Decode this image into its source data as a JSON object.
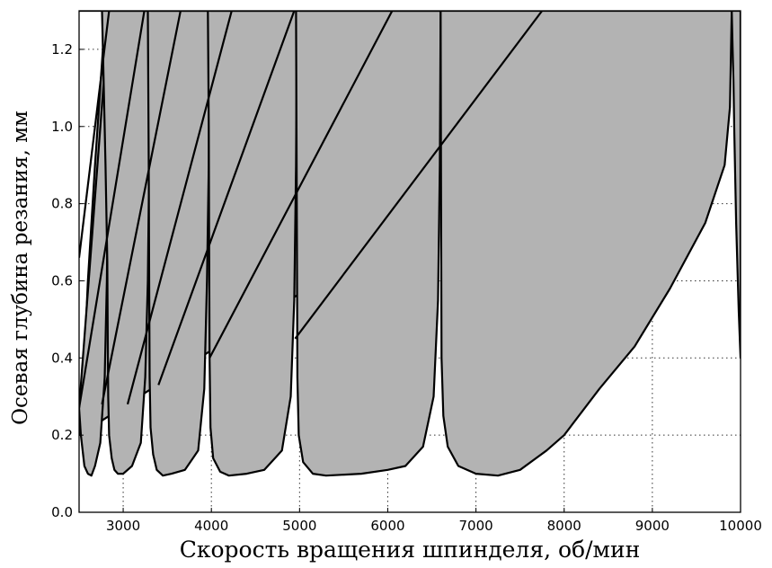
{
  "chart_data": {
    "type": "line",
    "title": "",
    "xlabel": "Скорость вращения шпинделя, об/мин",
    "ylabel": "Осевая глубина резания, мм",
    "xlim": [
      2500,
      10000
    ],
    "ylim": [
      0,
      1.3
    ],
    "xticks": [
      "3000",
      "4000",
      "5000",
      "6000",
      "7000",
      "8000",
      "9000",
      "10000"
    ],
    "yticks": [
      "0.0",
      "0.2",
      "0.4",
      "0.6",
      "0.8",
      "1.0",
      "1.2"
    ],
    "grid": true,
    "fill_color": "#b3b3b3",
    "line_color": "#000000",
    "lobes": [
      {
        "x": [
          2800,
          2680,
          2600,
          2560,
          2500
        ],
        "y": [
          1.3,
          0.9,
          0.6,
          0.4,
          0.2
        ]
      },
      {
        "x": [
          2840,
          2830,
          2815,
          2790,
          2740,
          2680,
          2640,
          2600,
          2560,
          2520,
          2500
        ],
        "y": [
          1.3,
          0.9,
          0.6,
          0.35,
          0.18,
          0.12,
          0.095,
          0.1,
          0.12,
          0.2,
          0.27
        ]
      },
      {
        "x": [
          3300,
          3295,
          3280,
          3250,
          3200,
          3100,
          3000,
          2940,
          2900,
          2870,
          2840,
          2830,
          2825,
          2820,
          2800,
          2780,
          2760,
          2720,
          2680,
          2600,
          2500
        ],
        "y": [
          1.3,
          0.9,
          0.6,
          0.35,
          0.18,
          0.12,
          0.1,
          0.1,
          0.11,
          0.14,
          0.2,
          0.3,
          0.45,
          0.65,
          0.9,
          1.1,
          1.3,
          1.3,
          1.3,
          1.3,
          1.3
        ]
      },
      {
        "x": [
          3980,
          3970,
          3950,
          3920,
          3850,
          3700,
          3550,
          3450,
          3380,
          3340,
          3310,
          3300,
          3295,
          3290,
          3280,
          3250,
          3200,
          3100,
          3000,
          2900,
          2850
        ],
        "y": [
          1.3,
          0.9,
          0.6,
          0.32,
          0.16,
          0.11,
          0.1,
          0.095,
          0.11,
          0.15,
          0.22,
          0.35,
          0.6,
          0.9,
          1.3,
          1.3,
          1.3,
          1.3,
          1.3,
          1.3,
          1.3
        ]
      },
      {
        "x": [
          4970,
          4960,
          4940,
          4900,
          4800,
          4600,
          4400,
          4200,
          4100,
          4020,
          3990,
          3980,
          3975,
          3970,
          3960,
          3900,
          3800,
          3600,
          3400,
          3310
        ],
        "y": [
          1.3,
          0.9,
          0.55,
          0.3,
          0.16,
          0.11,
          0.1,
          0.095,
          0.105,
          0.14,
          0.22,
          0.4,
          0.7,
          1.0,
          1.3,
          1.3,
          1.3,
          1.3,
          1.3,
          1.3
        ]
      },
      {
        "x": [
          6600,
          6590,
          6570,
          6520,
          6400,
          6200,
          6000,
          5700,
          5300,
          5150,
          5040,
          4990,
          4975,
          4970,
          4965,
          4960,
          4900,
          4700,
          4400,
          4100,
          3990
        ],
        "y": [
          1.3,
          0.9,
          0.55,
          0.3,
          0.17,
          0.12,
          0.11,
          0.1,
          0.095,
          0.1,
          0.13,
          0.2,
          0.35,
          0.7,
          1.0,
          1.3,
          1.3,
          1.3,
          1.3,
          1.3,
          1.3
        ]
      },
      {
        "x": [
          9900,
          9880,
          9820,
          9600,
          9200,
          8800,
          8400,
          8000,
          7800,
          7500,
          7250,
          7000,
          6800,
          6680,
          6630,
          6610,
          6605,
          6600,
          6500,
          6000,
          5500,
          5000
        ],
        "y": [
          1.3,
          1.05,
          0.9,
          0.75,
          0.58,
          0.43,
          0.32,
          0.2,
          0.16,
          0.11,
          0.095,
          0.1,
          0.12,
          0.17,
          0.25,
          0.4,
          0.8,
          1.3,
          1.3,
          1.3,
          1.3,
          1.3
        ]
      },
      {
        "x": [
          10000,
          9980,
          9950,
          9930,
          9920,
          9910,
          9905,
          9900
        ],
        "y": [
          0.4,
          0.52,
          0.75,
          0.98,
          1.12,
          1.2,
          1.25,
          1.3
        ]
      }
    ],
    "crossing_lines": [
      {
        "x": [
          2500,
          2840
        ],
        "y": [
          0.66,
          1.3
        ]
      },
      {
        "x": [
          2500,
          3240
        ],
        "y": [
          0.27,
          1.3
        ]
      },
      {
        "x": [
          2760,
          3650
        ],
        "y": [
          0.28,
          1.3
        ]
      },
      {
        "x": [
          3050,
          4230
        ],
        "y": [
          0.28,
          1.3
        ]
      },
      {
        "x": [
          3400,
          4940
        ],
        "y": [
          0.33,
          1.3
        ]
      },
      {
        "x": [
          3980,
          6050
        ],
        "y": [
          0.4,
          1.3
        ]
      },
      {
        "x": [
          4950,
          7750
        ],
        "y": [
          0.45,
          1.3
        ]
      }
    ]
  }
}
